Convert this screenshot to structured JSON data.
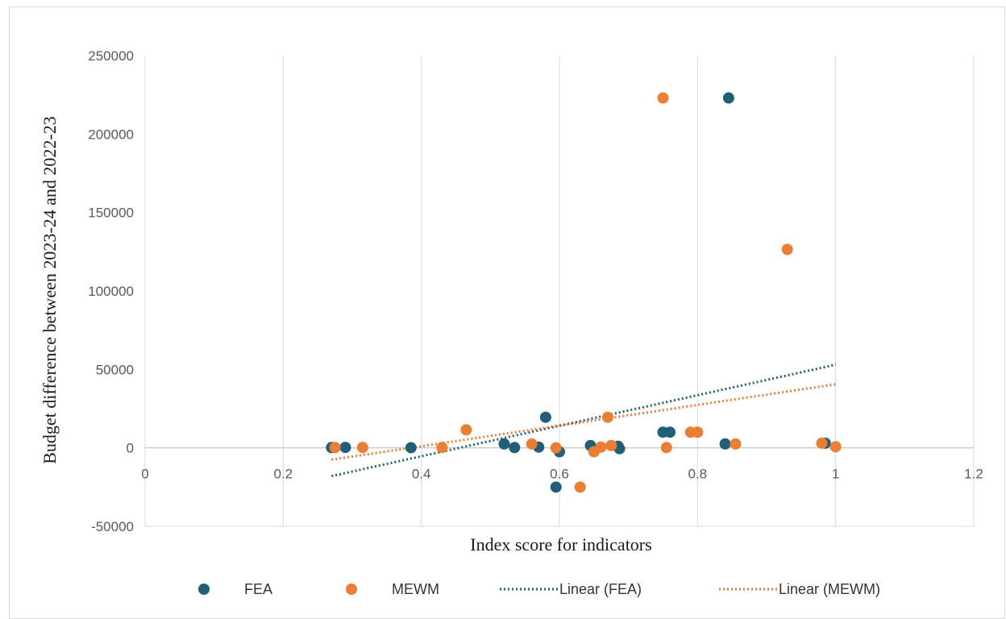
{
  "chart_data": {
    "type": "scatter",
    "title": "",
    "xlabel": "Index score for indicators",
    "ylabel": "Budget difference between 2023-24 and 2022-23",
    "xlim": [
      0,
      1.2
    ],
    "ylim": [
      -50000,
      250000
    ],
    "x_ticks": [
      "0",
      "0.2",
      "0.4",
      "0.6",
      "0.8",
      "1",
      "1.2"
    ],
    "y_ticks": [
      "-50000",
      "0",
      "50000",
      "100000",
      "150000",
      "200000",
      "250000"
    ],
    "grid": "vertical",
    "legend_position": "bottom",
    "series": [
      {
        "name": "FEA",
        "color": "#1f5f7a",
        "points": [
          {
            "x": 0.27,
            "y": 200
          },
          {
            "x": 0.29,
            "y": 300
          },
          {
            "x": 0.385,
            "y": 100
          },
          {
            "x": 0.52,
            "y": 2500
          },
          {
            "x": 0.535,
            "y": 200
          },
          {
            "x": 0.57,
            "y": 500
          },
          {
            "x": 0.58,
            "y": 19500
          },
          {
            "x": 0.595,
            "y": -25000
          },
          {
            "x": 0.6,
            "y": -2500
          },
          {
            "x": 0.645,
            "y": 1500
          },
          {
            "x": 0.685,
            "y": 1000
          },
          {
            "x": 0.687,
            "y": -500
          },
          {
            "x": 0.75,
            "y": 10000
          },
          {
            "x": 0.76,
            "y": 10000
          },
          {
            "x": 0.84,
            "y": 2500
          },
          {
            "x": 0.845,
            "y": 223000
          },
          {
            "x": 0.985,
            "y": 3000
          }
        ]
      },
      {
        "name": "MEWM",
        "color": "#ed7d31",
        "points": [
          {
            "x": 0.275,
            "y": 200
          },
          {
            "x": 0.315,
            "y": 300
          },
          {
            "x": 0.43,
            "y": 200
          },
          {
            "x": 0.465,
            "y": 11500
          },
          {
            "x": 0.56,
            "y": 2500
          },
          {
            "x": 0.595,
            "y": 0
          },
          {
            "x": 0.63,
            "y": -25000
          },
          {
            "x": 0.65,
            "y": -2500
          },
          {
            "x": 0.66,
            "y": 500
          },
          {
            "x": 0.67,
            "y": 19500
          },
          {
            "x": 0.675,
            "y": 1500
          },
          {
            "x": 0.75,
            "y": 223000
          },
          {
            "x": 0.755,
            "y": 200
          },
          {
            "x": 0.79,
            "y": 10000
          },
          {
            "x": 0.8,
            "y": 10000
          },
          {
            "x": 0.855,
            "y": 2500
          },
          {
            "x": 0.93,
            "y": 126500
          },
          {
            "x": 0.98,
            "y": 3000
          },
          {
            "x": 1.0,
            "y": 700
          }
        ]
      }
    ],
    "trendlines": [
      {
        "name": "Linear (FEA)",
        "color": "#1f5f7a",
        "x": [
          0.27,
          1.0
        ],
        "y": [
          -18000,
          53000
        ]
      },
      {
        "name": "Linear (MEWM)",
        "color": "#ed7d31",
        "x": [
          0.27,
          1.0
        ],
        "y": [
          -7500,
          40500
        ]
      }
    ]
  }
}
